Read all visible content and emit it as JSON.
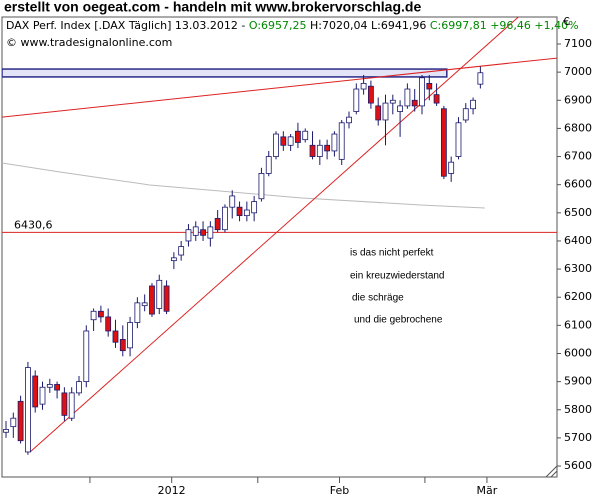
{
  "chart_data": {
    "type": "candlestick",
    "header": "erstellt von oegeat.com - handeln mit www.brokervorschlag.de",
    "subtitle": [
      {
        "text": "DAX Perf. Index [.DAX Täglich] 13.03.2012 -",
        "color": "#000000"
      },
      {
        "text": "O:6957,25",
        "color": "#008800"
      },
      {
        "text": "H:7020,04 L:6941,96",
        "color": "#000000"
      },
      {
        "text": "C:6997,81 +96,46 +1,40%",
        "color": "#008800"
      }
    ],
    "source": "© www.tradesignalonline.com",
    "currency": "€",
    "open": [
      5720,
      5740,
      5830,
      5650,
      5920,
      5820,
      5880,
      5890,
      5860,
      5770,
      5860,
      5900,
      6120,
      6150,
      6130,
      6080,
      6050,
      6020,
      6110,
      6170,
      6240,
      6160,
      6240,
      6330,
      6350,
      6400,
      6420,
      6440,
      6410,
      6480,
      6440,
      6520,
      6520,
      6490,
      6500,
      6550,
      6640,
      6700,
      6770,
      6740,
      6790,
      6760,
      6740,
      6700,
      6740,
      6720,
      6690,
      6820,
      6860,
      6940,
      6950,
      6880,
      6830,
      6890,
      6860,
      6880,
      6900,
      6880,
      6960,
      6920,
      6870,
      6640,
      6700,
      6830,
      6870,
      6957.25
    ],
    "high": [
      5760,
      5790,
      5850,
      5970,
      5940,
      5900,
      5910,
      5900,
      5880,
      5880,
      5920,
      6100,
      6160,
      6170,
      6160,
      6120,
      6100,
      6130,
      6200,
      6210,
      6250,
      6280,
      6260,
      6360,
      6400,
      6460,
      6470,
      6470,
      6470,
      6510,
      6530,
      6580,
      6540,
      6540,
      6560,
      6660,
      6720,
      6790,
      6790,
      6780,
      6820,
      6800,
      6790,
      6760,
      6760,
      6790,
      6830,
      6860,
      6960,
      6990,
      6970,
      6910,
      6920,
      6920,
      6900,
      6960,
      6940,
      6990,
      6990,
      6960,
      6880,
      6700,
      6840,
      6890,
      6910,
      7020.04
    ],
    "low": [
      5700,
      5700,
      5680,
      5640,
      5790,
      5800,
      5860,
      5840,
      5760,
      5760,
      5850,
      5880,
      6080,
      6110,
      6060,
      6020,
      5990,
      5990,
      6090,
      6150,
      6130,
      6140,
      6140,
      6300,
      6330,
      6380,
      6400,
      6400,
      6380,
      6430,
      6430,
      6480,
      6470,
      6470,
      6470,
      6540,
      6630,
      6690,
      6720,
      6720,
      6730,
      6750,
      6690,
      6670,
      6690,
      6700,
      6670,
      6800,
      6850,
      6920,
      6870,
      6810,
      6740,
      6850,
      6770,
      6870,
      6860,
      6850,
      6900,
      6880,
      6620,
      6610,
      6690,
      6820,
      6850,
      6941.96
    ],
    "close": [
      5730,
      5770,
      5690,
      5950,
      5810,
      5880,
      5890,
      5870,
      5780,
      5860,
      5900,
      6080,
      6150,
      6130,
      6080,
      6040,
      6010,
      6110,
      6180,
      6180,
      6140,
      6260,
      6150,
      6340,
      6380,
      6440,
      6450,
      6420,
      6450,
      6440,
      6520,
      6560,
      6490,
      6510,
      6540,
      6640,
      6700,
      6780,
      6740,
      6770,
      6750,
      6790,
      6700,
      6740,
      6720,
      6780,
      6820,
      6840,
      6940,
      6960,
      6890,
      6830,
      6890,
      6900,
      6880,
      6940,
      6880,
      6980,
      6940,
      6890,
      6630,
      6680,
      6820,
      6870,
      6900,
      6997.81
    ],
    "up_color": "#ffffff",
    "down_color": "#dd1111",
    "outline_color": "#1a1a6e",
    "xlim": [
      -0.55,
      75.5
    ],
    "xticks": [
      {
        "value": 22.7,
        "label": "2012"
      },
      {
        "value": 45.7,
        "label": "Feb"
      },
      {
        "value": 65.9,
        "label": "Mär"
      }
    ],
    "x_minor_ticks": [
      11.5,
      34.5,
      57.4
    ],
    "ylim": [
      5561,
      7196
    ],
    "yticks": [
      5600,
      5700,
      5800,
      5900,
      6000,
      6100,
      6200,
      6300,
      6400,
      6500,
      6600,
      6700,
      6800,
      6900,
      7000,
      7100
    ],
    "grid": false,
    "lines": [
      {
        "x": [
          -0.55,
          7.4,
          19.7,
          40.3,
          56.8,
          65.6
        ],
        "values": [
          6677,
          6645,
          6599,
          6553,
          6528,
          6517
        ],
        "color": "#bbbbbb"
      },
      {
        "x": [
          -0.55,
          75.5
        ],
        "values": [
          6840,
          7050
        ],
        "color": "#dd2222"
      },
      {
        "x": [
          3.3,
          72.5
        ],
        "values": [
          5650,
          7249
        ],
        "color": "#dd2222"
      }
    ],
    "hlines": [
      {
        "value": 6430.6,
        "label": "6430,6",
        "color": "#dd2222"
      }
    ],
    "zones": [
      {
        "x": [
          -0.55,
          60.4
        ],
        "values": [
          6983,
          7011
        ],
        "color": "#e4e4f8",
        "stroke": "#2a2a88"
      }
    ],
    "annotations": [
      "is das nicht perfekt",
      "ein kreuzwiederstand",
      "die schräge",
      "und die gebrochene"
    ]
  }
}
